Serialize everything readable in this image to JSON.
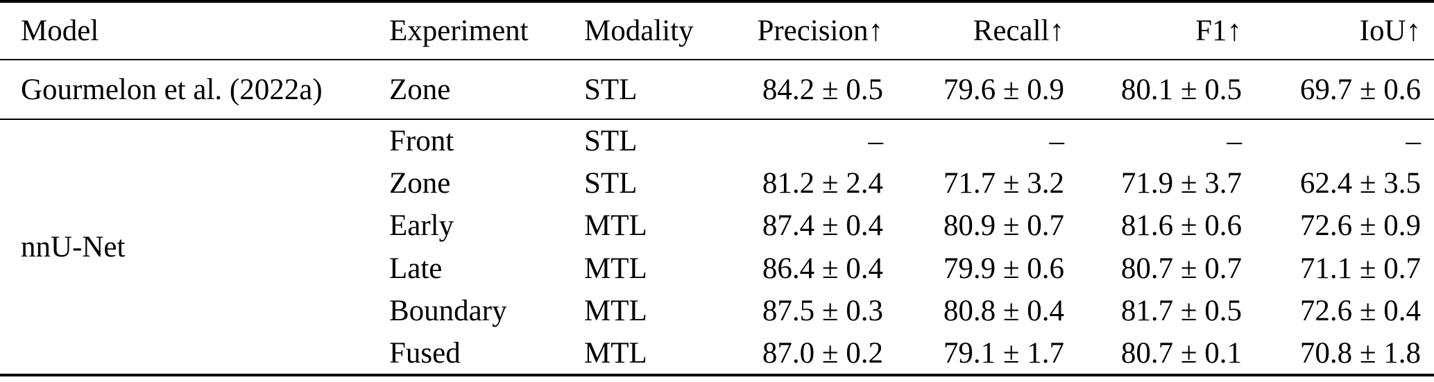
{
  "table": {
    "columns": [
      {
        "label": "Model",
        "align": "left"
      },
      {
        "label": "Experiment",
        "align": "left"
      },
      {
        "label": "Modality",
        "align": "left"
      },
      {
        "label": "Precision↑",
        "align": "right"
      },
      {
        "label": "Recall↑",
        "align": "right"
      },
      {
        "label": "F1↑",
        "align": "right"
      },
      {
        "label": "IoU↑",
        "align": "right"
      }
    ],
    "groups": [
      {
        "model": "Gourmelon et al. (2022a)",
        "rows": [
          {
            "experiment": "Zone",
            "modality": "STL",
            "precision": "84.2 ± 0.5",
            "recall": "79.6 ± 0.9",
            "f1": "80.1 ± 0.5",
            "iou": "69.7 ± 0.6"
          }
        ]
      },
      {
        "model": "nnU-Net",
        "rows": [
          {
            "experiment": "Front",
            "modality": "STL",
            "precision": "–",
            "recall": "–",
            "f1": "–",
            "iou": "–"
          },
          {
            "experiment": "Zone",
            "modality": "STL",
            "precision": "81.2 ± 2.4",
            "recall": "71.7 ± 3.2",
            "f1": "71.9 ± 3.7",
            "iou": "62.4 ± 3.5"
          },
          {
            "experiment": "Early",
            "modality": "MTL",
            "precision": "87.4 ± 0.4",
            "recall": "80.9 ± 0.7",
            "f1": "81.6 ± 0.6",
            "iou": "72.6 ± 0.9"
          },
          {
            "experiment": "Late",
            "modality": "MTL",
            "precision": "86.4 ± 0.4",
            "recall": "79.9 ± 0.6",
            "f1": "80.7 ± 0.7",
            "iou": "71.1 ± 0.7"
          },
          {
            "experiment": "Boundary",
            "modality": "MTL",
            "precision": "87.5 ± 0.3",
            "recall": "80.8 ± 0.4",
            "f1": "81.7 ± 0.5",
            "iou": "72.6 ± 0.4"
          },
          {
            "experiment": "Fused",
            "modality": "MTL",
            "precision": "87.0 ± 0.2",
            "recall": "79.1 ± 1.7",
            "f1": "80.7 ± 0.1",
            "iou": "70.8 ± 1.8"
          }
        ]
      }
    ],
    "text_color": "#000000",
    "background_color": "#ffffff"
  }
}
